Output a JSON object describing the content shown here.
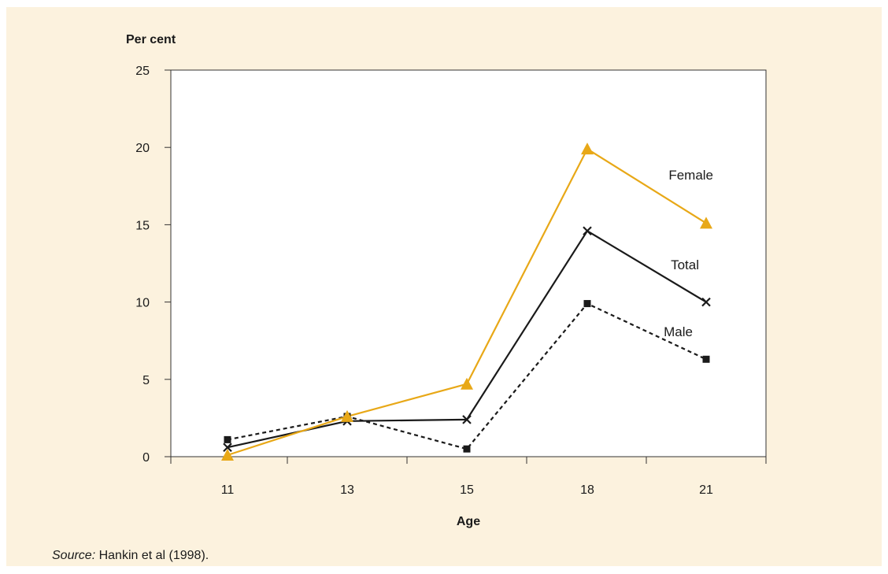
{
  "chart_data": {
    "type": "line",
    "ylabel": "Per cent",
    "xlabel": "Age",
    "x": [
      "11",
      "13",
      "15",
      "18",
      "21"
    ],
    "yticks": [
      0,
      5,
      10,
      15,
      20,
      25
    ],
    "ylim": [
      0,
      25
    ],
    "grid": false,
    "series": [
      {
        "name": "Female",
        "values": [
          0.1,
          2.6,
          4.7,
          19.9,
          15.1
        ],
        "color": "#e8a817",
        "marker": "triangle",
        "dash": "solid"
      },
      {
        "name": "Total",
        "values": [
          0.6,
          2.3,
          2.4,
          14.6,
          10.0
        ],
        "color": "#1a1a1a",
        "marker": "x",
        "dash": "solid"
      },
      {
        "name": "Male",
        "values": [
          1.1,
          2.6,
          0.5,
          9.9,
          6.3
        ],
        "color": "#1a1a1a",
        "marker": "square",
        "dash": "dashed"
      }
    ]
  },
  "source": {
    "prefix": "Source:",
    "text": " Hankin et al (1998)."
  },
  "colors": {
    "panel_background": "#fcf2de",
    "female": "#e8a817",
    "total": "#1a1a1a",
    "male": "#1a1a1a"
  }
}
